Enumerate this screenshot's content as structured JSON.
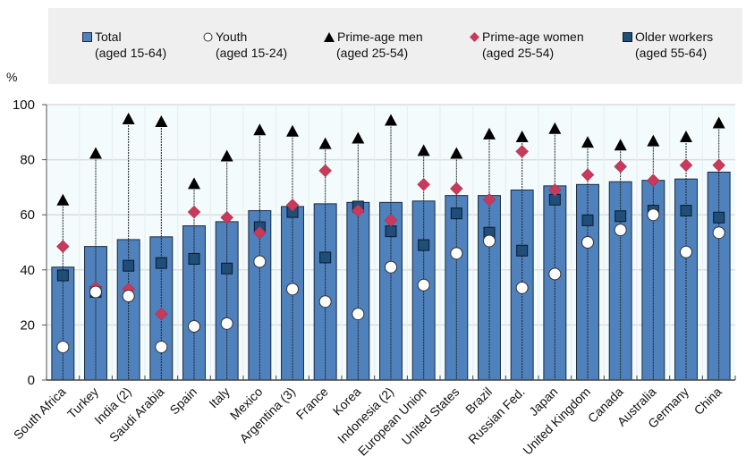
{
  "chart_data": {
    "type": "bar",
    "title": "",
    "ylabel": "%",
    "xlabel": "",
    "ylim": [
      0,
      100
    ],
    "yticks": [
      0,
      20,
      40,
      60,
      80,
      100
    ],
    "grid": true,
    "legend_position": "top",
    "categories": [
      "South Africa",
      "Turkey",
      "India (2)",
      "Saudi Arabia",
      "Spain",
      "Italy",
      "Mexico",
      "Argentina (3)",
      "France",
      "Korea",
      "Indonesia (2)",
      "European Union",
      "United States",
      "Brazil",
      "Russian Fed.",
      "Japan",
      "United Kingdom",
      "Canada",
      "Australia",
      "Germany",
      "China"
    ],
    "series": [
      {
        "name": "Total (aged 15-64)",
        "key": "total",
        "mark": "bar",
        "color": "#4f81bd",
        "values": [
          41,
          48.5,
          51,
          52,
          56,
          57.5,
          61.5,
          63,
          64,
          64.5,
          64.5,
          65,
          67,
          67,
          69,
          70.5,
          71,
          72,
          72.5,
          73,
          75.5
        ]
      },
      {
        "name": "Youth (aged 15-24)",
        "key": "youth",
        "mark": "circle",
        "color": "#ffffff",
        "values": [
          12,
          32,
          30.5,
          12,
          19.5,
          20.5,
          43,
          33,
          28.5,
          24,
          41,
          34.5,
          46,
          50.5,
          33.5,
          38.5,
          50,
          54.5,
          60,
          46.5,
          53.5
        ]
      },
      {
        "name": "Prime-age men (aged 25-54)",
        "key": "men",
        "mark": "triangle",
        "color": "#000000",
        "values": [
          65,
          82,
          94.5,
          93.5,
          71,
          81,
          90.5,
          90,
          85.5,
          87.5,
          94,
          83,
          82,
          89,
          88,
          91,
          86,
          85,
          86.5,
          88,
          93
        ]
      },
      {
        "name": "Prime-age women (aged 25-54)",
        "key": "women",
        "mark": "diamond",
        "color": "#c8395a",
        "values": [
          48.5,
          33.5,
          33,
          24,
          61,
          59,
          53.5,
          63.5,
          76,
          61.5,
          58,
          71,
          69.5,
          65.5,
          83,
          69,
          74.5,
          77.5,
          72.5,
          78,
          78
        ]
      },
      {
        "name": "Older workers (aged 55-64)",
        "key": "older",
        "mark": "square",
        "color": "#1f4e79",
        "values": [
          38,
          32,
          41.5,
          42.5,
          44,
          40.5,
          55.5,
          61,
          44.5,
          63,
          54,
          49,
          60.5,
          53.5,
          47,
          65.5,
          58,
          59.5,
          61.5,
          61.5,
          59
        ]
      }
    ]
  },
  "legend": [
    {
      "line1": "Total",
      "line2": "(aged 15-64)",
      "symbol": "square-light"
    },
    {
      "line1": "Youth",
      "line2": "(aged 15-24)",
      "symbol": "circle"
    },
    {
      "line1": "Prime-age men",
      "line2": "(aged 25-54)",
      "symbol": "triangle"
    },
    {
      "line1": "Prime-age women",
      "line2": "(aged 25-54)",
      "symbol": "diamond"
    },
    {
      "line1": "Older workers",
      "line2": "(aged 55-64)",
      "symbol": "square-dark"
    }
  ],
  "y_unit_label": "%"
}
